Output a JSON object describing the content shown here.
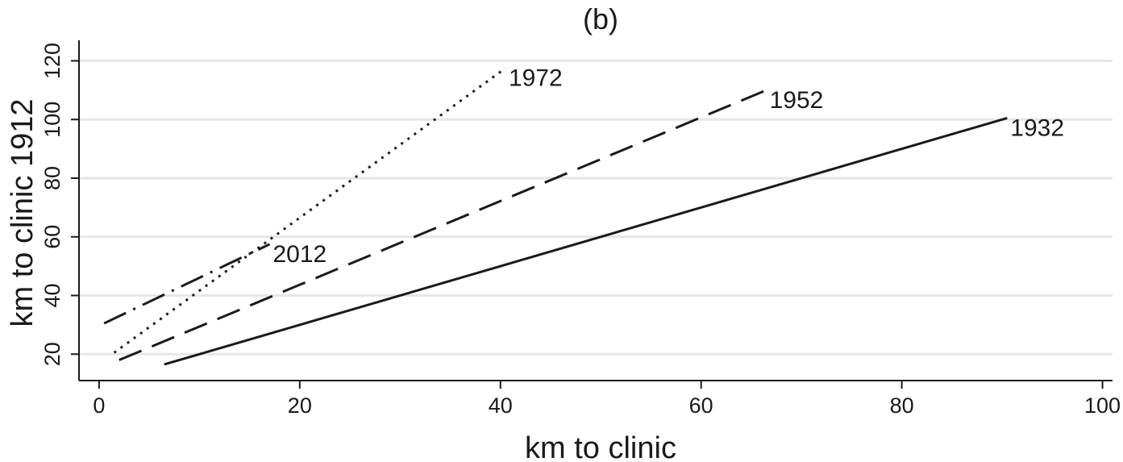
{
  "chart_data": {
    "type": "line",
    "title": "(b)",
    "xlabel": "km to clinic",
    "ylabel": "km to clinic 1912",
    "xlim": [
      -2,
      101
    ],
    "ylim": [
      11,
      127
    ],
    "xticks": [
      0,
      20,
      40,
      60,
      80,
      100
    ],
    "yticks": [
      20,
      40,
      60,
      80,
      100,
      120
    ],
    "grid": "horizontal",
    "legend": "none",
    "series": [
      {
        "name": "1932",
        "style": "solid",
        "x": [
          6.5,
          90.5
        ],
        "y": [
          16.5,
          100.5
        ]
      },
      {
        "name": "1952",
        "style": "dashed",
        "x": [
          2.0,
          66.5
        ],
        "y": [
          18.0,
          110.0
        ]
      },
      {
        "name": "1972",
        "style": "dotted",
        "x": [
          1.5,
          40.5
        ],
        "y": [
          20.5,
          117.5
        ]
      },
      {
        "name": "2012",
        "style": "dash-dot",
        "x": [
          0.5,
          17.0
        ],
        "y": [
          30.5,
          57.5
        ]
      }
    ]
  }
}
